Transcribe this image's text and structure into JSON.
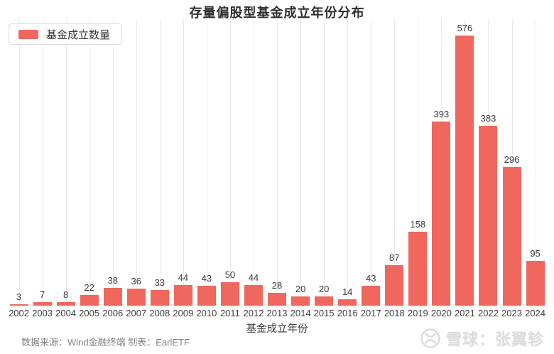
{
  "title": "存量偏股型基金成立年份分布",
  "legend": {
    "label": "基金成立数量"
  },
  "axis": {
    "x_title": "基金成立年份"
  },
  "footer": {
    "source": "数据来源：Wind金融终端 制表：EarlETF",
    "watermark": "雪球：张翼轸"
  },
  "colors": {
    "bar": "#f0675e",
    "gridline": "#e8e8e8",
    "title_text": "#2e2e2e",
    "value_label": "#3a3a3a",
    "tick_label": "#3d3d3d",
    "source_text": "#828282",
    "watermark_text": "#dcdcdc"
  },
  "chart_data": {
    "type": "bar",
    "title": "存量偏股型基金成立年份分布",
    "xlabel": "基金成立年份",
    "ylabel": "",
    "legend": [
      "基金成立数量"
    ],
    "legend_position": "top-left",
    "grid": "vertical-only",
    "ylim": [
      0,
      600
    ],
    "categories": [
      "2002",
      "2003",
      "2004",
      "2005",
      "2006",
      "2007",
      "2008",
      "2009",
      "2010",
      "2011",
      "2012",
      "2013",
      "2014",
      "2015",
      "2016",
      "2017",
      "2018",
      "2019",
      "2020",
      "2021",
      "2022",
      "2023",
      "2024"
    ],
    "values": [
      3,
      7,
      8,
      22,
      38,
      36,
      33,
      44,
      43,
      50,
      44,
      28,
      20,
      20,
      14,
      43,
      87,
      158,
      393,
      576,
      383,
      296,
      95
    ]
  }
}
